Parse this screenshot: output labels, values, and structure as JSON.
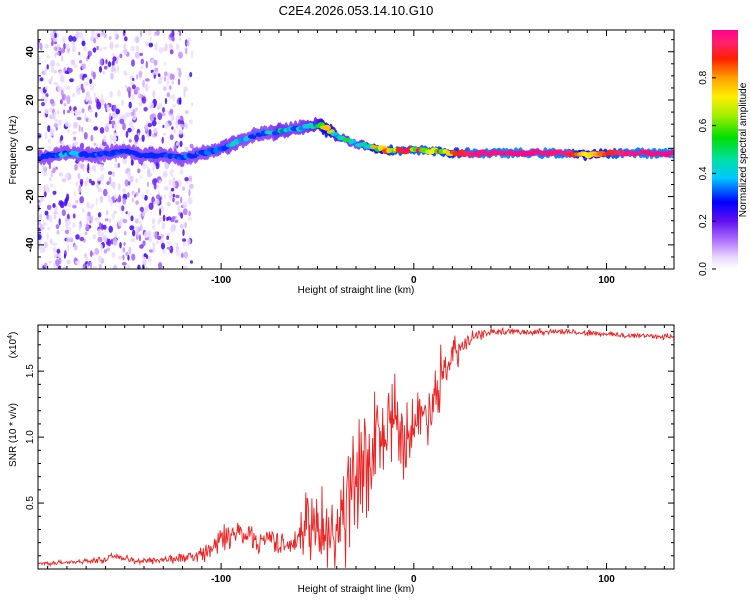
{
  "title": "C2E4.2026.053.14.10.G10",
  "colors": {
    "axis": "#000000",
    "snr_line": "#ee2222",
    "background": "#ffffff"
  },
  "chart_data": [
    {
      "type": "heatmap",
      "name": "spectrogram",
      "xlabel": "Height of straight line (km)",
      "ylabel": "Frequency (Hz)",
      "xlim": [
        -195,
        135
      ],
      "ylim": [
        -50,
        49
      ],
      "xticks": [
        -100,
        0,
        100
      ],
      "xtick_labels": [
        "-100",
        "0",
        "100"
      ],
      "yticks": [
        -40,
        -20,
        0,
        20,
        40
      ],
      "ytick_labels": [
        "-40",
        "-20",
        "0",
        "20",
        "40"
      ],
      "colorbar": {
        "label": "Normalized spectral amplitude",
        "range": [
          0.0,
          1.0
        ],
        "ticks": [
          0.0,
          0.2,
          0.4,
          0.6,
          0.8
        ],
        "tick_labels": [
          "0.0",
          "0.2",
          "0.4",
          "0.6",
          "0.8"
        ]
      },
      "ridge": {
        "x": [
          -195,
          -180,
          -165,
          -150,
          -140,
          -130,
          -120,
          -110,
          -100,
          -90,
          -80,
          -70,
          -60,
          -50,
          -45,
          -40,
          -30,
          -20,
          -10,
          0,
          10,
          20,
          30,
          60,
          80,
          90,
          100,
          110,
          135
        ],
        "freq": [
          -4,
          -2,
          -3,
          -1,
          -3,
          -3,
          -4,
          -2,
          0,
          3,
          6,
          7,
          8,
          10,
          8,
          5,
          2,
          0,
          -1,
          -1,
          -1,
          -2,
          -2,
          -2,
          -2,
          -3,
          -2,
          -2,
          -2
        ],
        "amplitude": [
          0.25,
          0.4,
          0.35,
          0.3,
          0.25,
          0.3,
          0.35,
          0.4,
          0.45,
          0.45,
          0.35,
          0.5,
          0.45,
          0.55,
          0.85,
          0.55,
          0.45,
          0.75,
          0.9,
          0.95,
          0.9,
          0.85,
          0.97,
          0.99,
          0.97,
          0.7,
          0.88,
          0.97,
          0.99
        ]
      },
      "noise_region_km": [
        -195,
        -115
      ]
    },
    {
      "type": "line",
      "name": "snr",
      "xlabel": "Height of straight line (km)",
      "ylabel": "SNR (10 * v/v)",
      "y_multiplier_label": "(x10",
      "y_multiplier_exp": "4",
      "y_multiplier_close": ")",
      "xlim": [
        -195,
        135
      ],
      "ylim": [
        0,
        1.85
      ],
      "xticks": [
        -100,
        0,
        100
      ],
      "xtick_labels": [
        "-100",
        "0",
        "100"
      ],
      "yticks": [
        0.5,
        1.0,
        1.5
      ],
      "ytick_labels": [
        "0.5",
        "1.0",
        "1.5"
      ],
      "series": [
        {
          "name": "SNR",
          "x": [
            -195,
            -180,
            -170,
            -160,
            -155,
            -145,
            -130,
            -115,
            -105,
            -100,
            -95,
            -90,
            -85,
            -80,
            -75,
            -70,
            -65,
            -60,
            -55,
            -50,
            -45,
            -40,
            -35,
            -30,
            -25,
            -20,
            -15,
            -10,
            -5,
            0,
            5,
            10,
            15,
            20,
            25,
            30,
            40,
            50,
            60,
            70,
            80,
            90,
            100,
            110,
            120,
            135
          ],
          "y": [
            0.04,
            0.05,
            0.06,
            0.07,
            0.1,
            0.06,
            0.07,
            0.09,
            0.15,
            0.22,
            0.25,
            0.28,
            0.26,
            0.2,
            0.25,
            0.2,
            0.17,
            0.22,
            0.38,
            0.3,
            0.2,
            0.3,
            0.5,
            0.6,
            0.75,
            0.95,
            1.0,
            1.05,
            1.0,
            1.1,
            1.15,
            1.3,
            1.45,
            1.6,
            1.68,
            1.75,
            1.8,
            1.8,
            1.8,
            1.8,
            1.8,
            1.79,
            1.78,
            1.77,
            1.77,
            1.76
          ],
          "spread": [
            0.02,
            0.02,
            0.02,
            0.03,
            0.03,
            0.03,
            0.04,
            0.05,
            0.1,
            0.14,
            0.14,
            0.14,
            0.12,
            0.1,
            0.12,
            0.1,
            0.08,
            0.12,
            0.4,
            0.3,
            0.3,
            0.5,
            0.6,
            0.6,
            0.6,
            0.5,
            0.45,
            0.4,
            0.35,
            0.3,
            0.3,
            0.3,
            0.25,
            0.2,
            0.12,
            0.06,
            0.03,
            0.03,
            0.03,
            0.03,
            0.03,
            0.03,
            0.03,
            0.03,
            0.03,
            0.03
          ]
        }
      ]
    }
  ]
}
